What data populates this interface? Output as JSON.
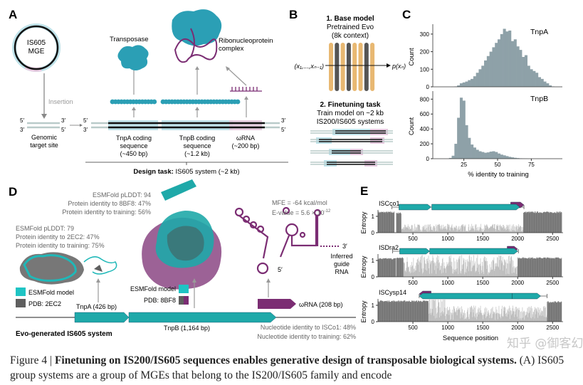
{
  "colors": {
    "teal": "#1fa9a9",
    "teal_light": "#bfe3ea",
    "purple": "#7b2d73",
    "pink_light": "#e6c9df",
    "gray_dark": "#5f5f5f",
    "hist": "#8ea1a8",
    "orange": "#e8b872",
    "protein_blue": "#2b9fb5"
  },
  "panelA": {
    "label": "A",
    "mge_line1": "IS605",
    "mge_line2": "MGE",
    "insertion": "Insertion",
    "five": "5′",
    "three": "3′",
    "target_line1": "Genomic",
    "target_line2": "target site",
    "transposase": "Transposase",
    "rnp_line1": "Ribonucleoprotein",
    "rnp_line2": "complex",
    "tnpa": [
      "TnpA coding",
      "sequence",
      "(~450 bp)"
    ],
    "tnpb": [
      "TnpB coding",
      "sequence",
      "(~1.2 kb)"
    ],
    "wrna": [
      "ωRNA",
      "(~200 bp)"
    ],
    "design_bold": "Design task:",
    "design_rest": " IS605 system (~2 kb)"
  },
  "panelB": {
    "label": "B",
    "title1": "1. Base model",
    "title1_line2": "Pretrained Evo",
    "title1_line3": "(8k context)",
    "input": "(x₁,...,xₙ₋₁)",
    "output": "p(xₙ)",
    "title2": "2. Finetuning task",
    "title2_line2": "Train model on ~2 kb",
    "title2_line3": "IS200/IS605 systems"
  },
  "panelD": {
    "label": "D",
    "tnpb_stats": [
      "ESMFold pLDDT: 94",
      "Protein identity to 8BF8: 47%",
      "Protein identity to training: 56%"
    ],
    "tnpa_stats": [
      "ESMFold pLDDT: 79",
      "Protein identity to 2EC2: 47%",
      "Protein identity to training: 75%"
    ],
    "mfe": "MFE = -64 kcal/mol",
    "evalue": "E-value = 5.6 × 10",
    "evalue_exp": "-12",
    "three": "3′",
    "five": "5′",
    "guide": [
      "Inferred",
      "guide",
      "RNA"
    ],
    "legend_left": [
      "ESMFold model",
      "PDB: 2EC2"
    ],
    "legend_mid": [
      "ESMFold model",
      "PDB: 8BF8"
    ],
    "tnpa": "TnpA (426 bp)",
    "tnpb": "TnpB (1,164 bp)",
    "wrna": "ωRNA (208 bp)",
    "system": "Evo-generated IS605 system",
    "nt1": "Nucleotide identity to ISCo1: 48%",
    "nt2": "Nucleotide identity to training: 62%"
  },
  "chart_data": [
    {
      "panel": "C",
      "type": "bar",
      "label": "C",
      "xlabel": "% identity to training",
      "xlim": [
        2,
        98
      ],
      "xticks": [
        25,
        50,
        75
      ],
      "series": [
        {
          "name": "TnpA",
          "ylabel": "Count",
          "ylim": [
            0,
            340
          ],
          "yticks": [
            0,
            100,
            200,
            300
          ],
          "bin_width": 2,
          "bin_start": [
            18,
            20,
            22,
            24,
            26,
            28,
            30,
            32,
            34,
            36,
            38,
            40,
            42,
            44,
            46,
            48,
            50,
            52,
            54,
            56,
            58,
            60,
            62,
            64,
            66,
            68,
            70,
            72,
            74,
            76,
            78,
            80,
            82,
            84,
            86,
            88,
            90
          ],
          "values": [
            2,
            8,
            20,
            25,
            30,
            38,
            45,
            60,
            80,
            100,
            120,
            150,
            175,
            200,
            225,
            250,
            270,
            300,
            330,
            315,
            320,
            260,
            270,
            230,
            210,
            170,
            180,
            120,
            100,
            90,
            80,
            55,
            45,
            30,
            20,
            8,
            2
          ]
        },
        {
          "name": "TnpB",
          "ylabel": "Count",
          "ylim": [
            0,
            870
          ],
          "yticks": [
            0,
            200,
            400,
            600,
            800
          ],
          "bin_width": 2,
          "bin_start": [
            14,
            16,
            18,
            20,
            22,
            24,
            26,
            28,
            30,
            32,
            34,
            36,
            38,
            40,
            42,
            44,
            46,
            48,
            50,
            52,
            54,
            56,
            58,
            60,
            62,
            64,
            66,
            68,
            70
          ],
          "values": [
            10,
            40,
            200,
            550,
            820,
            780,
            450,
            280,
            190,
            150,
            120,
            100,
            90,
            80,
            85,
            95,
            100,
            90,
            70,
            55,
            45,
            35,
            25,
            18,
            12,
            8,
            5,
            3,
            2
          ]
        }
      ]
    },
    {
      "panel": "E",
      "type": "area",
      "label": "E",
      "xlabel": "Sequence position",
      "ylabel": "Entropy",
      "xlim": [
        0,
        2650
      ],
      "xticks": [
        500,
        1000,
        1500,
        2000,
        2500
      ],
      "ylim": [
        0,
        1.5
      ],
      "yticks": [
        0,
        1
      ],
      "series": [
        {
          "name": "ISCco1",
          "system_span": [
            200,
            2090
          ],
          "tnpA": [
            300,
            760
          ],
          "tnpB": [
            770,
            2030
          ],
          "wrna": [
            1900,
            2090
          ],
          "direction": "forward",
          "entropy_segments": [
            [
              0,
              230,
              1.3
            ],
            [
              230,
              260,
              0.02
            ],
            [
              260,
              330,
              1.25
            ],
            [
              330,
              2080,
              0.3
            ],
            [
              2080,
              2630,
              1.3
            ]
          ]
        },
        {
          "name": "ISDra2",
          "system_span": [
            210,
            2010
          ],
          "tnpA": [
            310,
            740
          ],
          "tnpB": [
            740,
            2000
          ],
          "wrna": [
            1850,
            2000
          ],
          "direction": "forward",
          "entropy_segments": [
            [
              0,
              250,
              1.15
            ],
            [
              250,
              260,
              0.05
            ],
            [
              260,
              360,
              1.2
            ],
            [
              360,
              2000,
              0.75
            ],
            [
              2000,
              2630,
              1.2
            ]
          ]
        },
        {
          "name": "ISCysp14",
          "system_span": [
            590,
            2420
          ],
          "tnpA": [
            1920,
            2330
          ],
          "tnpB": [
            590,
            1920
          ],
          "wrna": [
            590,
            760
          ],
          "direction": "reverse",
          "entropy_segments": [
            [
              0,
              720,
              1.3
            ],
            [
              720,
              960,
              1.0
            ],
            [
              960,
              2420,
              0.55
            ],
            [
              2420,
              2630,
              1.25
            ]
          ]
        }
      ]
    }
  ],
  "caption": {
    "figure": "Figure 4 | ",
    "title": "Finetuning on IS200/IS605 sequences enables generative design of transposable biological systems.",
    "text": " (A) IS605 group systems are a group of MGEs that belong to the IS200/IS605 family and encode",
    "watermark": "知乎 @御客幻影"
  }
}
